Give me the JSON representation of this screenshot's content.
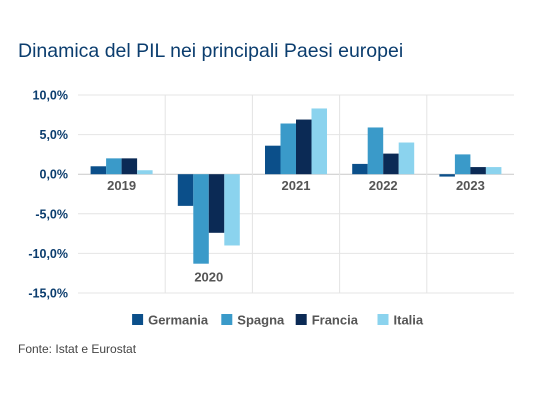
{
  "chart_data": {
    "type": "bar",
    "title": "Dinamica del PIL nei principali Paesi europei",
    "source": "Fonte: Istat e Eurostat",
    "categories": [
      "2019",
      "2020",
      "2021",
      "2022",
      "2023"
    ],
    "series": [
      {
        "name": "Germania",
        "values": [
          1.0,
          -4.0,
          3.6,
          1.3,
          -0.3
        ]
      },
      {
        "name": "Spagna",
        "values": [
          2.0,
          -11.3,
          6.4,
          5.9,
          2.5
        ]
      },
      {
        "name": "Francia",
        "values": [
          2.0,
          -7.4,
          6.9,
          2.6,
          0.9
        ]
      },
      {
        "name": "Italia",
        "values": [
          0.5,
          -9.0,
          8.3,
          4.0,
          0.9
        ]
      }
    ],
    "colors": [
      "#0b4f8a",
      "#3a9ac9",
      "#0b2a55",
      "#8bd3ee"
    ],
    "ylim": [
      -15,
      10
    ],
    "yticks": [
      10,
      5,
      0,
      -5,
      -10,
      -15
    ],
    "ytick_labels": [
      "10,0%",
      "5,0%",
      "0,0%",
      "-5,0%",
      "-10,0%",
      "-15,0%"
    ],
    "xlabel": "",
    "ylabel": "",
    "grid": true,
    "legend_position": "bottom"
  }
}
